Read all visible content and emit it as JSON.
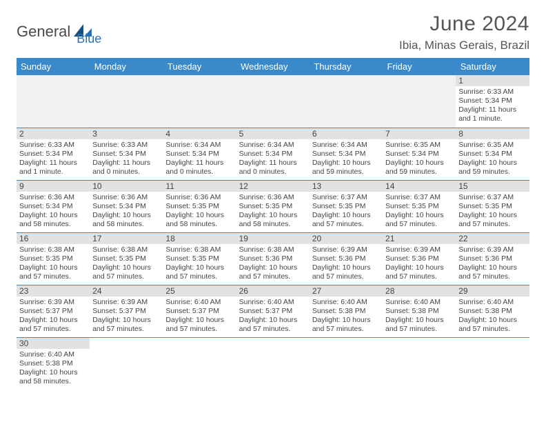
{
  "logo": {
    "text1": "General",
    "text2": "Blue"
  },
  "title": "June 2024",
  "location": "Ibia, Minas Gerais, Brazil",
  "colors": {
    "header_bg": "#3a8acb",
    "header_text": "#ffffff",
    "daynum_bg": "#e2e2e2",
    "border": "#3a8acb",
    "empty_bg": "#f1f1f1",
    "text": "#444444",
    "logo_gray": "#4a4a4a",
    "logo_blue": "#2d6fb5"
  },
  "day_headers": [
    "Sunday",
    "Monday",
    "Tuesday",
    "Wednesday",
    "Thursday",
    "Friday",
    "Saturday"
  ],
  "weeks": [
    [
      null,
      null,
      null,
      null,
      null,
      null,
      {
        "num": "1",
        "sunrise": "Sunrise: 6:33 AM",
        "sunset": "Sunset: 5:34 PM",
        "daylight": "Daylight: 11 hours and 1 minute."
      }
    ],
    [
      {
        "num": "2",
        "sunrise": "Sunrise: 6:33 AM",
        "sunset": "Sunset: 5:34 PM",
        "daylight": "Daylight: 11 hours and 1 minute."
      },
      {
        "num": "3",
        "sunrise": "Sunrise: 6:33 AM",
        "sunset": "Sunset: 5:34 PM",
        "daylight": "Daylight: 11 hours and 0 minutes."
      },
      {
        "num": "4",
        "sunrise": "Sunrise: 6:34 AM",
        "sunset": "Sunset: 5:34 PM",
        "daylight": "Daylight: 11 hours and 0 minutes."
      },
      {
        "num": "5",
        "sunrise": "Sunrise: 6:34 AM",
        "sunset": "Sunset: 5:34 PM",
        "daylight": "Daylight: 11 hours and 0 minutes."
      },
      {
        "num": "6",
        "sunrise": "Sunrise: 6:34 AM",
        "sunset": "Sunset: 5:34 PM",
        "daylight": "Daylight: 10 hours and 59 minutes."
      },
      {
        "num": "7",
        "sunrise": "Sunrise: 6:35 AM",
        "sunset": "Sunset: 5:34 PM",
        "daylight": "Daylight: 10 hours and 59 minutes."
      },
      {
        "num": "8",
        "sunrise": "Sunrise: 6:35 AM",
        "sunset": "Sunset: 5:34 PM",
        "daylight": "Daylight: 10 hours and 59 minutes."
      }
    ],
    [
      {
        "num": "9",
        "sunrise": "Sunrise: 6:36 AM",
        "sunset": "Sunset: 5:34 PM",
        "daylight": "Daylight: 10 hours and 58 minutes."
      },
      {
        "num": "10",
        "sunrise": "Sunrise: 6:36 AM",
        "sunset": "Sunset: 5:34 PM",
        "daylight": "Daylight: 10 hours and 58 minutes."
      },
      {
        "num": "11",
        "sunrise": "Sunrise: 6:36 AM",
        "sunset": "Sunset: 5:35 PM",
        "daylight": "Daylight: 10 hours and 58 minutes."
      },
      {
        "num": "12",
        "sunrise": "Sunrise: 6:36 AM",
        "sunset": "Sunset: 5:35 PM",
        "daylight": "Daylight: 10 hours and 58 minutes."
      },
      {
        "num": "13",
        "sunrise": "Sunrise: 6:37 AM",
        "sunset": "Sunset: 5:35 PM",
        "daylight": "Daylight: 10 hours and 57 minutes."
      },
      {
        "num": "14",
        "sunrise": "Sunrise: 6:37 AM",
        "sunset": "Sunset: 5:35 PM",
        "daylight": "Daylight: 10 hours and 57 minutes."
      },
      {
        "num": "15",
        "sunrise": "Sunrise: 6:37 AM",
        "sunset": "Sunset: 5:35 PM",
        "daylight": "Daylight: 10 hours and 57 minutes."
      }
    ],
    [
      {
        "num": "16",
        "sunrise": "Sunrise: 6:38 AM",
        "sunset": "Sunset: 5:35 PM",
        "daylight": "Daylight: 10 hours and 57 minutes."
      },
      {
        "num": "17",
        "sunrise": "Sunrise: 6:38 AM",
        "sunset": "Sunset: 5:35 PM",
        "daylight": "Daylight: 10 hours and 57 minutes."
      },
      {
        "num": "18",
        "sunrise": "Sunrise: 6:38 AM",
        "sunset": "Sunset: 5:35 PM",
        "daylight": "Daylight: 10 hours and 57 minutes."
      },
      {
        "num": "19",
        "sunrise": "Sunrise: 6:38 AM",
        "sunset": "Sunset: 5:36 PM",
        "daylight": "Daylight: 10 hours and 57 minutes."
      },
      {
        "num": "20",
        "sunrise": "Sunrise: 6:39 AM",
        "sunset": "Sunset: 5:36 PM",
        "daylight": "Daylight: 10 hours and 57 minutes."
      },
      {
        "num": "21",
        "sunrise": "Sunrise: 6:39 AM",
        "sunset": "Sunset: 5:36 PM",
        "daylight": "Daylight: 10 hours and 57 minutes."
      },
      {
        "num": "22",
        "sunrise": "Sunrise: 6:39 AM",
        "sunset": "Sunset: 5:36 PM",
        "daylight": "Daylight: 10 hours and 57 minutes."
      }
    ],
    [
      {
        "num": "23",
        "sunrise": "Sunrise: 6:39 AM",
        "sunset": "Sunset: 5:37 PM",
        "daylight": "Daylight: 10 hours and 57 minutes."
      },
      {
        "num": "24",
        "sunrise": "Sunrise: 6:39 AM",
        "sunset": "Sunset: 5:37 PM",
        "daylight": "Daylight: 10 hours and 57 minutes."
      },
      {
        "num": "25",
        "sunrise": "Sunrise: 6:40 AM",
        "sunset": "Sunset: 5:37 PM",
        "daylight": "Daylight: 10 hours and 57 minutes."
      },
      {
        "num": "26",
        "sunrise": "Sunrise: 6:40 AM",
        "sunset": "Sunset: 5:37 PM",
        "daylight": "Daylight: 10 hours and 57 minutes."
      },
      {
        "num": "27",
        "sunrise": "Sunrise: 6:40 AM",
        "sunset": "Sunset: 5:38 PM",
        "daylight": "Daylight: 10 hours and 57 minutes."
      },
      {
        "num": "28",
        "sunrise": "Sunrise: 6:40 AM",
        "sunset": "Sunset: 5:38 PM",
        "daylight": "Daylight: 10 hours and 57 minutes."
      },
      {
        "num": "29",
        "sunrise": "Sunrise: 6:40 AM",
        "sunset": "Sunset: 5:38 PM",
        "daylight": "Daylight: 10 hours and 57 minutes."
      }
    ],
    [
      {
        "num": "30",
        "sunrise": "Sunrise: 6:40 AM",
        "sunset": "Sunset: 5:38 PM",
        "daylight": "Daylight: 10 hours and 58 minutes."
      },
      null,
      null,
      null,
      null,
      null,
      null
    ]
  ]
}
